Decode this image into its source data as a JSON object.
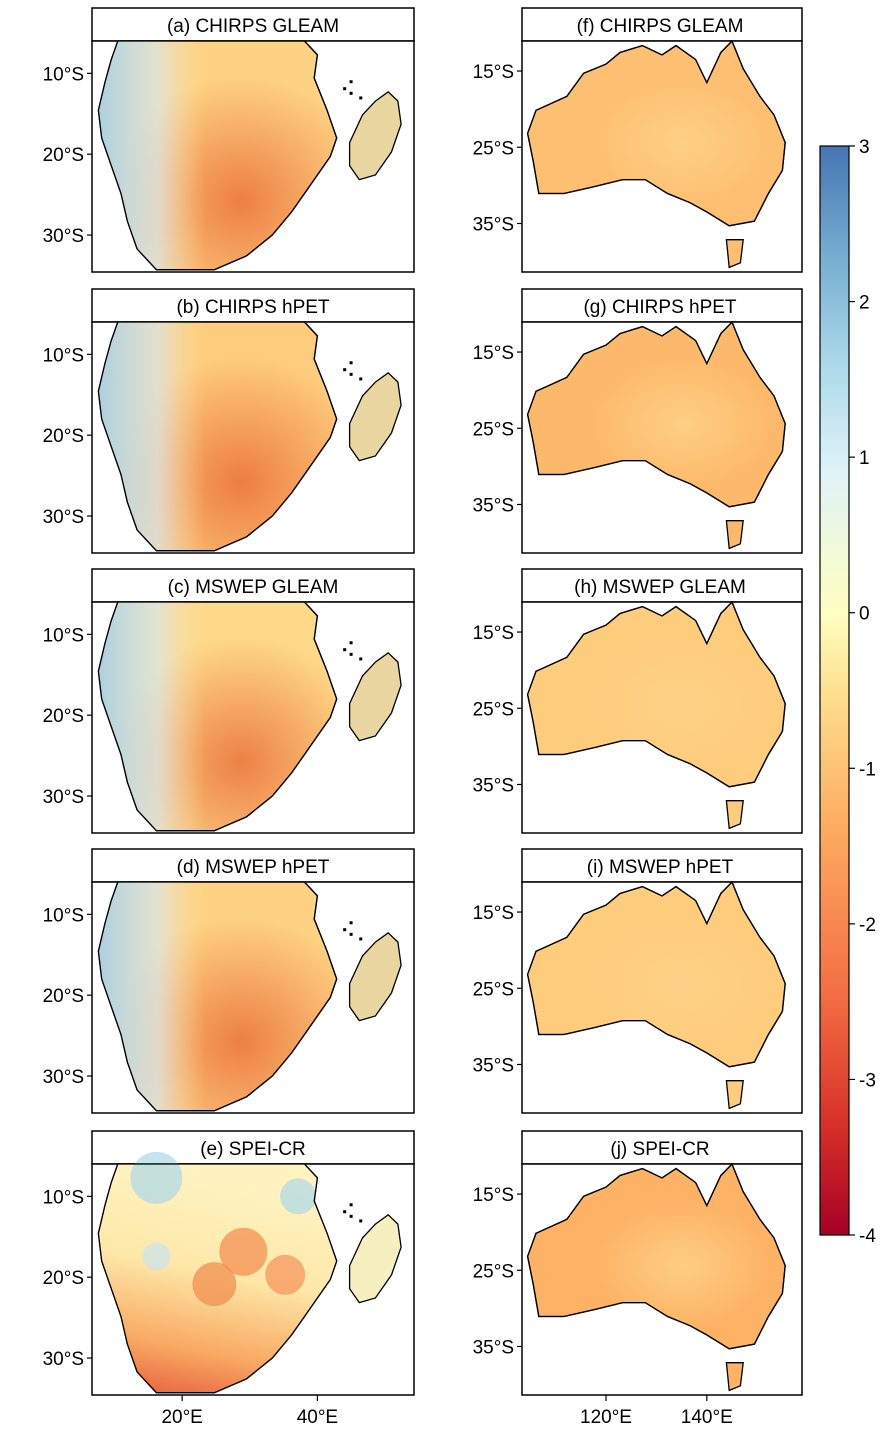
{
  "chart_data": {
    "type": "heatmap",
    "colorbar": {
      "ticks": [
        "3",
        "2",
        "1",
        "0",
        "-1",
        "-2",
        "-3",
        "-4"
      ],
      "range": [
        -4,
        3
      ],
      "palette": [
        "#a50026",
        "#d73027",
        "#f46d43",
        "#fdae61",
        "#fee090",
        "#ffffbf",
        "#e0f3f8",
        "#abd9e9",
        "#74add1",
        "#4575b4"
      ]
    },
    "panels": [
      {
        "id": "a",
        "title": "(a) CHIRPS  GLEAM",
        "region": "africa",
        "ylabels": [
          "10°S",
          "20°S",
          "30°S"
        ],
        "mean_value": -1.1,
        "west_coast_value": 0.8
      },
      {
        "id": "b",
        "title": "(b) CHIRPS  hPET",
        "region": "africa",
        "ylabels": [
          "10°S",
          "20°S",
          "30°S"
        ],
        "mean_value": -1.2,
        "west_coast_value": 0.9
      },
      {
        "id": "c",
        "title": "(c) MSWEP  GLEAM",
        "region": "africa",
        "ylabels": [
          "10°S",
          "20°S",
          "30°S"
        ],
        "mean_value": -1.0,
        "west_coast_value": 1.2
      },
      {
        "id": "d",
        "title": "(d) MSWEP  hPET",
        "region": "africa",
        "ylabels": [
          "10°S",
          "20°S",
          "30°S"
        ],
        "mean_value": -1.1,
        "west_coast_value": 1.2
      },
      {
        "id": "e",
        "title": "(e) SPEI-CR",
        "region": "africa",
        "ylabels": [
          "10°S",
          "20°S",
          "30°S"
        ],
        "xlabels": [
          "20°E",
          "40°E"
        ],
        "mean_value": -0.5,
        "west_coast_value": -2.2
      },
      {
        "id": "f",
        "title": "(f) CHIRPS  GLEAM",
        "region": "australia",
        "ylabels": [
          "15°S",
          "25°S",
          "35°S"
        ],
        "mean_value": -1.4
      },
      {
        "id": "g",
        "title": "(g) CHIRPS  hPET",
        "region": "australia",
        "ylabels": [
          "15°S",
          "25°S",
          "35°S"
        ],
        "mean_value": -1.5
      },
      {
        "id": "h",
        "title": "(h) MSWEP  GLEAM",
        "region": "australia",
        "ylabels": [
          "15°S",
          "25°S",
          "35°S"
        ],
        "mean_value": -1.2
      },
      {
        "id": "i",
        "title": "(i) MSWEP  hPET",
        "region": "australia",
        "ylabels": [
          "15°S",
          "25°S",
          "35°S"
        ],
        "mean_value": -1.2
      },
      {
        "id": "j",
        "title": "(j) SPEI-CR",
        "region": "australia",
        "ylabels": [
          "15°S",
          "25°S",
          "35°S"
        ],
        "xlabels": [
          "120°E",
          "140°E"
        ],
        "mean_value": -1.6
      }
    ]
  }
}
